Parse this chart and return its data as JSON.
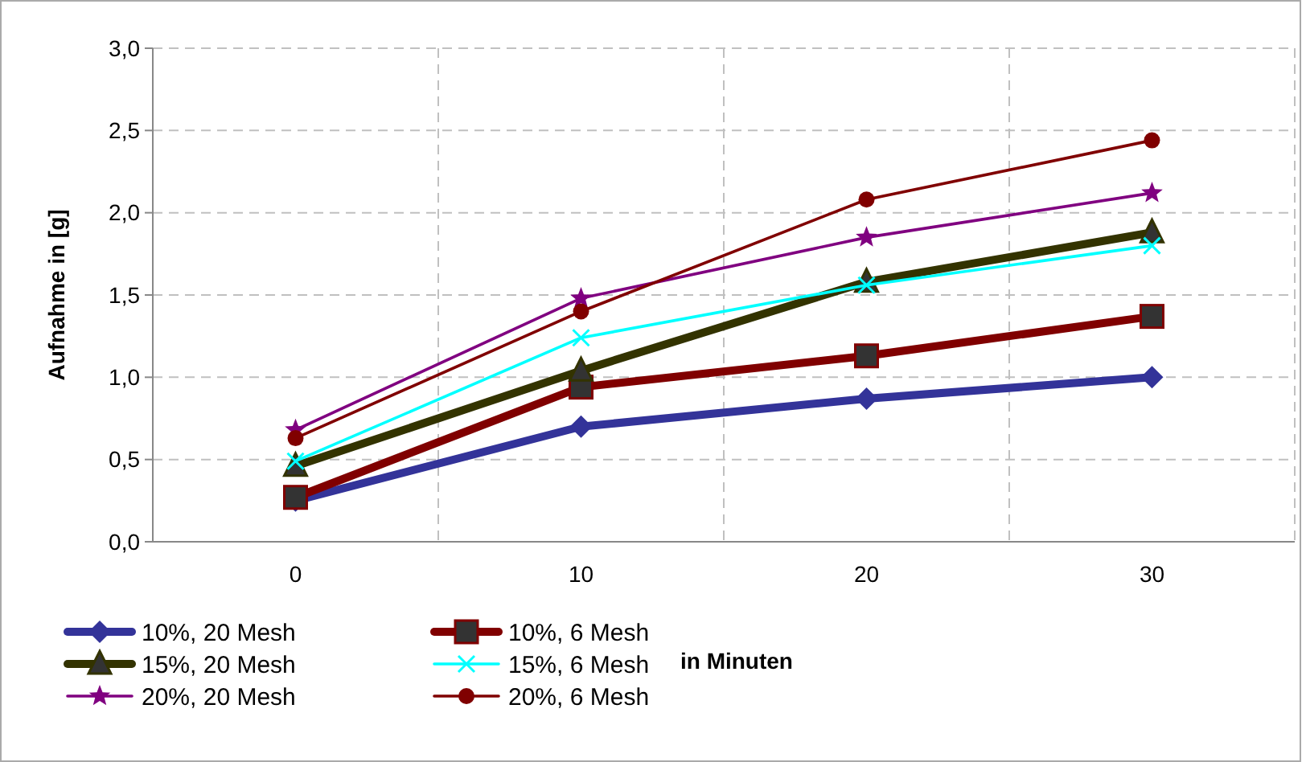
{
  "chart_data": {
    "type": "line",
    "xlabel": "in Minuten",
    "ylabel": "Aufnahme in [g]",
    "categories": [
      "0",
      "10",
      "20",
      "30"
    ],
    "ylim": [
      0,
      3
    ],
    "yticks": [
      {
        "value": 0,
        "label": "0,0"
      },
      {
        "value": 0.5,
        "label": "0,5"
      },
      {
        "value": 1,
        "label": "1,0"
      },
      {
        "value": 1.5,
        "label": "1,5"
      },
      {
        "value": 2,
        "label": "2,0"
      },
      {
        "value": 2.5,
        "label": "2,5"
      },
      {
        "value": 3,
        "label": "3,0"
      }
    ],
    "grid": true,
    "legend": "bottom left",
    "line_style": "solid",
    "series": [
      {
        "name": "10%, 20 Mesh",
        "color": "#333399",
        "marker": "diamond",
        "values": [
          0.25,
          0.7,
          0.87,
          1.0
        ]
      },
      {
        "name": "10%, 6 Mesh",
        "color": "#800000",
        "marker": "square",
        "values": [
          0.27,
          0.94,
          1.13,
          1.37
        ]
      },
      {
        "name": "15%, 20 Mesh",
        "color": "#333300",
        "marker": "triangle",
        "values": [
          0.46,
          1.04,
          1.58,
          1.88
        ]
      },
      {
        "name": "15%, 6 Mesh",
        "color": "#00ffff",
        "marker": "cross",
        "values": [
          0.49,
          1.24,
          1.56,
          1.8
        ]
      },
      {
        "name": "20%, 20 Mesh",
        "color": "#800080",
        "marker": "star",
        "values": [
          0.68,
          1.48,
          1.85,
          2.12
        ]
      },
      {
        "name": "20%, 6 Mesh",
        "color": "#800000",
        "marker": "circle",
        "values": [
          0.63,
          1.4,
          2.08,
          2.44
        ]
      }
    ]
  }
}
